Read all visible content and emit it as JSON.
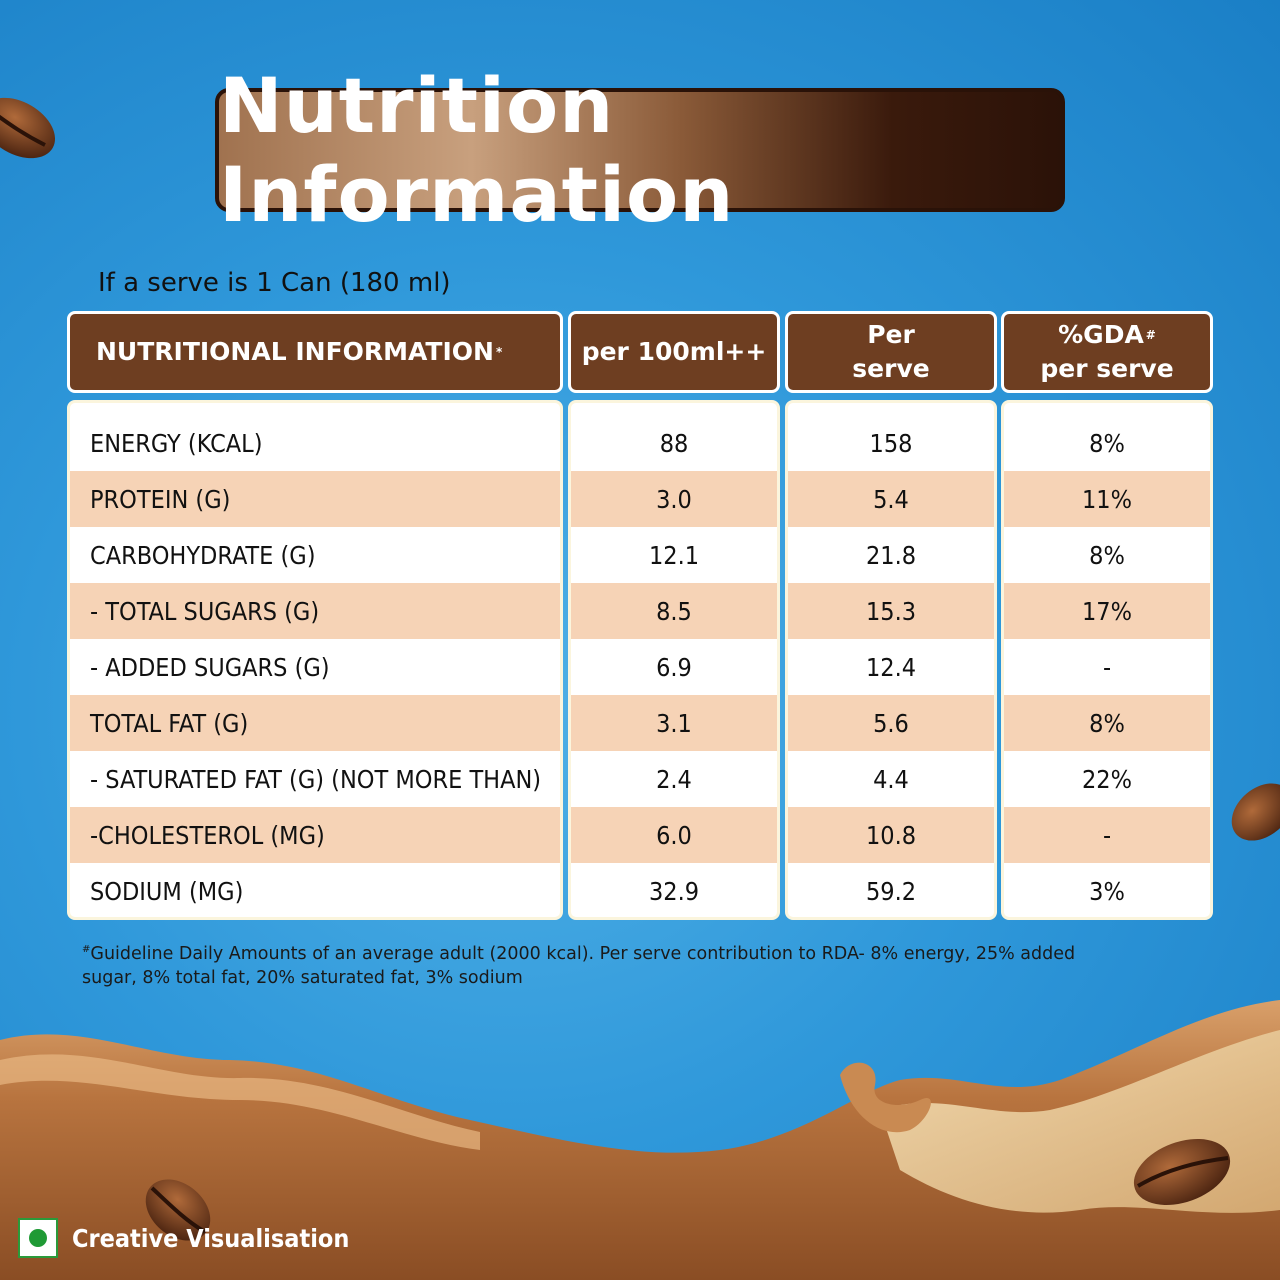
{
  "title": "Nutrition Information",
  "serve_note": "If a serve is 1 Can (180 ml)",
  "headers": [
    "NUTRITIONAL INFORMATION",
    "per 100ml++",
    "Per serve",
    "%GDA# per serve"
  ],
  "header_lines": {
    "col0": "NUTRITIONAL INFORMATION",
    "col0_mark": "*",
    "col1": "per 100ml++",
    "col2_l1": "Per",
    "col2_l2": "serve",
    "col3_l1": "%GDA",
    "col3_mark": "#",
    "col3_l2": "per serve"
  },
  "rows": [
    {
      "label": "ENERGY (KCAL)",
      "per100": "88",
      "perserve": "158",
      "gda": "8%"
    },
    {
      "label": "PROTEIN (G)",
      "per100": "3.0",
      "perserve": "5.4",
      "gda": "11%"
    },
    {
      "label": "CARBOHYDRATE (G)",
      "per100": "12.1",
      "perserve": "21.8",
      "gda": "8%"
    },
    {
      "label": "- TOTAL SUGARS (G)",
      "per100": "8.5",
      "perserve": "15.3",
      "gda": "17%"
    },
    {
      "label": "- ADDED SUGARS (G)",
      "per100": "6.9",
      "perserve": "12.4",
      "gda": "-"
    },
    {
      "label": "TOTAL FAT (G)",
      "per100": "3.1",
      "perserve": "5.6",
      "gda": "8%"
    },
    {
      "label": "- SATURATED FAT (G) (NOT MORE THAN)",
      "per100": "2.4",
      "perserve": "4.4",
      "gda": "22%"
    },
    {
      "label": "-CHOLESTEROL (MG)",
      "per100": "6.0",
      "perserve": "10.8",
      "gda": "-"
    },
    {
      "label": "SODIUM (MG)",
      "per100": "32.9",
      "perserve": "59.2",
      "gda": "3%"
    }
  ],
  "footnote_mark": "#",
  "footnote": "Guideline Daily Amounts of an average adult (2000 kcal). Per serve contribution to RDA- 8% energy, 25% added sugar, 8% total fat, 20% saturated fat, 3% sodium",
  "badge_label": "Creative Visualisation",
  "colors": {
    "background": "#2f98da",
    "header": "#6e3e21",
    "row_shade": "#f6d3b6",
    "veg_mark": "#1f9a35"
  }
}
